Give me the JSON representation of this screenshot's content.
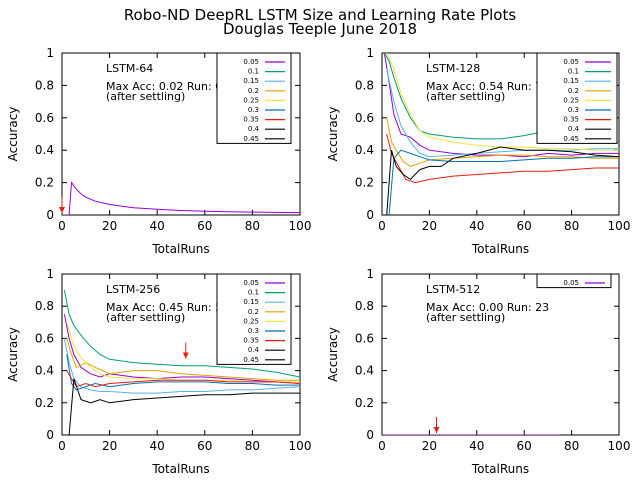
{
  "title": "Robo-ND DeepRL LSTM Size and Learning Rate Plots",
  "subtitle": "Douglas Teeple June 2018",
  "chart_data": [
    {
      "type": "line",
      "title": "LSTM-64",
      "xlabel": "TotalRuns",
      "ylabel": "Accuracy",
      "xlim": [
        0,
        100
      ],
      "ylim": [
        0,
        1
      ],
      "xticks": [
        "0",
        "20",
        "40",
        "60",
        "80",
        "100"
      ],
      "yticks": [
        "0",
        "0.2",
        "0.4",
        "0.6",
        "0.8",
        "1"
      ],
      "annotation": [
        "Max Acc: 0.02 Run: 0",
        "(after settling)"
      ],
      "marker_run": 0,
      "legend_position": "top-right",
      "series": [
        {
          "name": "0.05",
          "color": "#9400d3",
          "x": [
            0,
            3,
            4,
            5,
            6,
            8,
            10,
            14,
            20,
            30,
            40,
            50,
            60,
            70,
            80,
            90,
            100
          ],
          "y": [
            0,
            0,
            0.2,
            0.18,
            0.16,
            0.13,
            0.11,
            0.085,
            0.065,
            0.045,
            0.035,
            0.028,
            0.023,
            0.02,
            0.018,
            0.016,
            0.015
          ]
        },
        {
          "name": "0.1",
          "color": "#009e73",
          "x": [],
          "y": []
        },
        {
          "name": "0.15",
          "color": "#56b4e9",
          "x": [],
          "y": []
        },
        {
          "name": "0.2",
          "color": "#e69f00",
          "x": [],
          "y": []
        },
        {
          "name": "0.25",
          "color": "#f0e442",
          "x": [],
          "y": []
        },
        {
          "name": "0.3",
          "color": "#0072b2",
          "x": [],
          "y": []
        },
        {
          "name": "0.35",
          "color": "#e51e10",
          "x": [],
          "y": []
        },
        {
          "name": "0.4",
          "color": "#000000",
          "x": [],
          "y": []
        },
        {
          "name": "0.45",
          "color": "#000000",
          "x": [],
          "y": []
        }
      ]
    },
    {
      "type": "line",
      "title": "LSTM-128",
      "xlabel": "TotalRuns",
      "ylabel": "Accuracy",
      "xlim": [
        0,
        100
      ],
      "ylim": [
        0,
        1
      ],
      "xticks": [
        "0",
        "20",
        "40",
        "60",
        "80",
        "100"
      ],
      "yticks": [
        "0",
        "0.2",
        "0.4",
        "0.6",
        "0.8",
        "1"
      ],
      "annotation": [
        "Max Acc: 0.54 Run: 72",
        "(after settling)"
      ],
      "marker_run": 72,
      "legend_position": "top-right",
      "series": [
        {
          "name": "0.05",
          "color": "#9400d3",
          "x": [
            1,
            3,
            5,
            8,
            12,
            16,
            20,
            30,
            40,
            50,
            60,
            70,
            80,
            90,
            100
          ],
          "y": [
            1.0,
            0.82,
            0.62,
            0.5,
            0.48,
            0.43,
            0.4,
            0.38,
            0.37,
            0.37,
            0.36,
            0.38,
            0.37,
            0.38,
            0.38
          ]
        },
        {
          "name": "0.1",
          "color": "#009e73",
          "x": [
            1,
            3,
            5,
            8,
            12,
            16,
            20,
            30,
            40,
            50,
            60,
            70,
            75,
            80,
            90,
            100
          ],
          "y": [
            1.0,
            0.95,
            0.85,
            0.72,
            0.6,
            0.52,
            0.5,
            0.48,
            0.47,
            0.47,
            0.49,
            0.52,
            0.5,
            0.47,
            0.45,
            0.45
          ]
        },
        {
          "name": "0.15",
          "color": "#56b4e9",
          "x": [
            2,
            5,
            8,
            12,
            16,
            20,
            30,
            40,
            50,
            60,
            70,
            80,
            90,
            100
          ],
          "y": [
            0.9,
            0.7,
            0.55,
            0.45,
            0.38,
            0.36,
            0.37,
            0.38,
            0.39,
            0.4,
            0.4,
            0.4,
            0.41,
            0.41
          ]
        },
        {
          "name": "0.2",
          "color": "#e69f00",
          "x": [
            2,
            4,
            6,
            9,
            12,
            16,
            20,
            30,
            40,
            50,
            60,
            70,
            80,
            90,
            100
          ],
          "y": [
            0.6,
            0.45,
            0.4,
            0.33,
            0.3,
            0.32,
            0.34,
            0.35,
            0.36,
            0.37,
            0.37,
            0.36,
            0.36,
            0.35,
            0.35
          ]
        },
        {
          "name": "0.25",
          "color": "#f0e442",
          "x": [
            2,
            5,
            8,
            12,
            16,
            20,
            30,
            40,
            50,
            60,
            70,
            80,
            90,
            100
          ],
          "y": [
            1.0,
            0.9,
            0.75,
            0.62,
            0.52,
            0.48,
            0.45,
            0.43,
            0.42,
            0.42,
            0.41,
            0.41,
            0.4,
            0.4
          ]
        },
        {
          "name": "0.3",
          "color": "#0072b2",
          "x": [
            3,
            5,
            8,
            12,
            16,
            20,
            30,
            40,
            50,
            60,
            70,
            80,
            90,
            100
          ],
          "y": [
            0.0,
            0.35,
            0.4,
            0.38,
            0.36,
            0.34,
            0.33,
            0.33,
            0.33,
            0.34,
            0.35,
            0.35,
            0.36,
            0.36
          ]
        },
        {
          "name": "0.35",
          "color": "#e51e10",
          "x": [
            2,
            4,
            7,
            10,
            14,
            20,
            30,
            40,
            50,
            60,
            70,
            80,
            90,
            100
          ],
          "y": [
            0.5,
            0.38,
            0.3,
            0.22,
            0.2,
            0.22,
            0.24,
            0.25,
            0.26,
            0.27,
            0.27,
            0.28,
            0.29,
            0.29
          ]
        },
        {
          "name": "0.4",
          "color": "#000000",
          "x": [
            2,
            4,
            6,
            9,
            12,
            16,
            20,
            25,
            30,
            40,
            50,
            60,
            70,
            80,
            90,
            100
          ],
          "y": [
            0.0,
            0.4,
            0.3,
            0.25,
            0.22,
            0.28,
            0.3,
            0.3,
            0.35,
            0.38,
            0.42,
            0.4,
            0.4,
            0.39,
            0.37,
            0.36
          ]
        },
        {
          "name": "0.45",
          "color": "#000000",
          "x": [],
          "y": []
        }
      ]
    },
    {
      "type": "line",
      "title": "LSTM-256",
      "xlabel": "TotalRuns",
      "ylabel": "Accuracy",
      "xlim": [
        0,
        100
      ],
      "ylim": [
        0,
        1
      ],
      "xticks": [
        "0",
        "20",
        "40",
        "60",
        "80",
        "100"
      ],
      "yticks": [
        "0",
        "0.2",
        "0.4",
        "0.6",
        "0.8",
        "1"
      ],
      "annotation": [
        "Max Acc: 0.45 Run: 52",
        "(after settling)"
      ],
      "marker_run": 52,
      "legend_position": "top-right",
      "series": [
        {
          "name": "0.05",
          "color": "#9400d3",
          "x": [
            1,
            3,
            5,
            8,
            12,
            16,
            20,
            30,
            40,
            50,
            60,
            70,
            80,
            90,
            100
          ],
          "y": [
            0.75,
            0.6,
            0.5,
            0.42,
            0.38,
            0.36,
            0.38,
            0.36,
            0.35,
            0.36,
            0.36,
            0.35,
            0.34,
            0.33,
            0.32
          ]
        },
        {
          "name": "0.1",
          "color": "#009e73",
          "x": [
            1,
            3,
            5,
            8,
            12,
            16,
            20,
            30,
            40,
            50,
            60,
            70,
            80,
            90,
            100
          ],
          "y": [
            0.9,
            0.75,
            0.68,
            0.62,
            0.55,
            0.5,
            0.47,
            0.45,
            0.44,
            0.43,
            0.43,
            0.42,
            0.41,
            0.39,
            0.36
          ]
        },
        {
          "name": "0.15",
          "color": "#56b4e9",
          "x": [
            1,
            3,
            5,
            8,
            12,
            16,
            20,
            30,
            40,
            50,
            60,
            70,
            80,
            90,
            100
          ],
          "y": [
            0.6,
            0.45,
            0.35,
            0.3,
            0.28,
            0.27,
            0.27,
            0.26,
            0.26,
            0.27,
            0.27,
            0.28,
            0.28,
            0.29,
            0.3
          ]
        },
        {
          "name": "0.2",
          "color": "#e69f00",
          "x": [
            2,
            4,
            6,
            10,
            14,
            20,
            30,
            40,
            50,
            60,
            70,
            80,
            90,
            100
          ],
          "y": [
            0.6,
            0.5,
            0.42,
            0.45,
            0.42,
            0.38,
            0.4,
            0.4,
            0.38,
            0.37,
            0.36,
            0.35,
            0.34,
            0.34
          ]
        },
        {
          "name": "0.25",
          "color": "#f0e442",
          "x": [
            2,
            5,
            8,
            12,
            16,
            20,
            30,
            40,
            50,
            60,
            70,
            80,
            90,
            100
          ],
          "y": [
            0.7,
            0.55,
            0.48,
            0.42,
            0.38,
            0.36,
            0.35,
            0.35,
            0.34,
            0.34,
            0.34,
            0.33,
            0.33,
            0.33
          ]
        },
        {
          "name": "0.3",
          "color": "#0072b2",
          "x": [
            2,
            4,
            6,
            10,
            14,
            20,
            30,
            40,
            50,
            60,
            70,
            80,
            90,
            100
          ],
          "y": [
            0.5,
            0.32,
            0.28,
            0.3,
            0.32,
            0.3,
            0.32,
            0.33,
            0.33,
            0.33,
            0.32,
            0.32,
            0.31,
            0.31
          ]
        },
        {
          "name": "0.35",
          "color": "#e51e10",
          "x": [
            2,
            4,
            6,
            10,
            14,
            20,
            30,
            40,
            50,
            60,
            70,
            80,
            90,
            100
          ],
          "y": [
            0.4,
            0.35,
            0.3,
            0.32,
            0.3,
            0.32,
            0.33,
            0.34,
            0.34,
            0.34,
            0.33,
            0.33,
            0.33,
            0.32
          ]
        },
        {
          "name": "0.4",
          "color": "#000000",
          "x": [
            3,
            5,
            8,
            12,
            16,
            20,
            30,
            40,
            50,
            60,
            70,
            80,
            90,
            100
          ],
          "y": [
            0.0,
            0.35,
            0.22,
            0.2,
            0.22,
            0.2,
            0.22,
            0.23,
            0.24,
            0.25,
            0.25,
            0.26,
            0.26,
            0.26
          ]
        },
        {
          "name": "0.45",
          "color": "#000000",
          "x": [],
          "y": []
        }
      ]
    },
    {
      "type": "line",
      "title": "LSTM-512",
      "xlabel": "TotalRuns",
      "ylabel": "Accuracy",
      "xlim": [
        0,
        100
      ],
      "ylim": [
        0,
        1
      ],
      "xticks": [
        "0",
        "20",
        "40",
        "60",
        "80",
        "100"
      ],
      "yticks": [
        "0",
        "0.2",
        "0.4",
        "0.6",
        "0.8",
        "1"
      ],
      "annotation": [
        "Max Acc: 0.00 Run: 23",
        "(after settling)"
      ],
      "marker_run": 23,
      "legend_position": "top-right",
      "series": [
        {
          "name": "0.05",
          "color": "#9400d3",
          "x": [
            0,
            75
          ],
          "y": [
            0,
            0
          ]
        }
      ]
    }
  ]
}
